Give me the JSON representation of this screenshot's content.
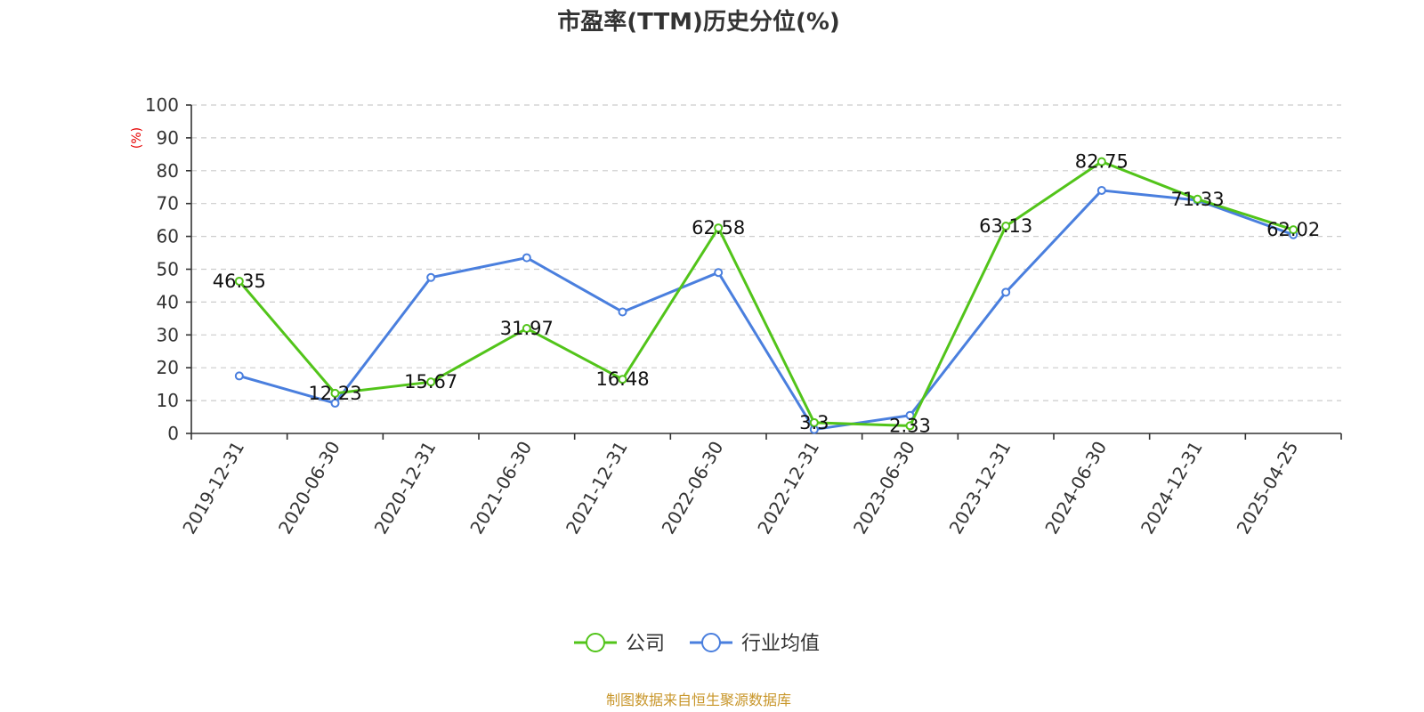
{
  "chart_data": {
    "type": "line",
    "title": "市盈率(TTM)历史分位(%)",
    "ylabel": "(%)",
    "xlabel": "",
    "categories": [
      "2019-12-31",
      "2020-06-30",
      "2020-12-31",
      "2021-06-30",
      "2021-12-31",
      "2022-06-30",
      "2022-12-31",
      "2023-06-30",
      "2023-12-31",
      "2024-06-30",
      "2024-12-31",
      "2025-04-25"
    ],
    "ylim": [
      0,
      100
    ],
    "yticks": [
      0,
      10,
      20,
      30,
      40,
      50,
      60,
      70,
      80,
      90,
      100
    ],
    "grid": true,
    "legend_position": "bottom",
    "series": [
      {
        "name": "公司",
        "color": "#52c41a",
        "values": [
          46.35,
          12.23,
          15.67,
          31.97,
          16.48,
          62.58,
          3.3,
          2.33,
          63.13,
          82.75,
          71.33,
          62.02
        ],
        "labels": [
          "46.35",
          "12.23",
          "15.67",
          "31.97",
          "16.48",
          "62.58",
          "3.3",
          "2.33",
          "63.13",
          "82.75",
          "71.33",
          "62.02"
        ]
      },
      {
        "name": "行业均值",
        "color": "#4a7fde",
        "values": [
          17.5,
          9.2,
          47.5,
          53.5,
          37,
          49,
          1.2,
          5.5,
          43,
          74,
          71,
          60.5
        ]
      }
    ]
  },
  "footer": {
    "source": "制图数据来自恒生聚源数据库"
  }
}
